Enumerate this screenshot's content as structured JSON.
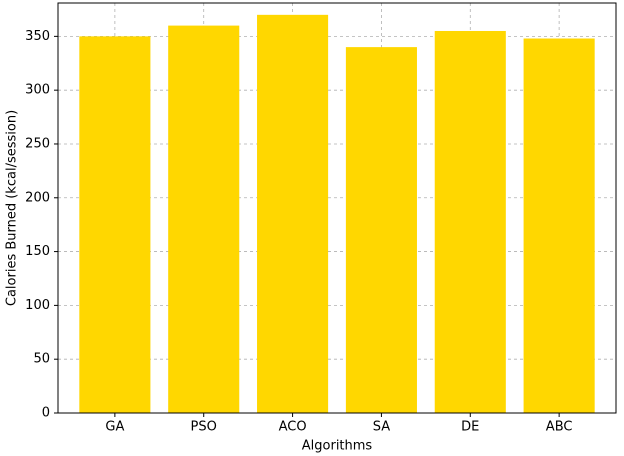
{
  "chart_data": {
    "type": "bar",
    "x_label": "Algorithms",
    "y_label": "Calories Burned (kcal/session)",
    "categories": [
      "GA",
      "PSO",
      "ACO",
      "SA",
      "DE",
      "ABC"
    ],
    "values": [
      350,
      360,
      370,
      340,
      355,
      348
    ],
    "color": "#ffd700",
    "ylim": [
      0,
      381
    ],
    "yticks": [
      0,
      50,
      100,
      150,
      200,
      250,
      300,
      350
    ],
    "grid": true
  }
}
